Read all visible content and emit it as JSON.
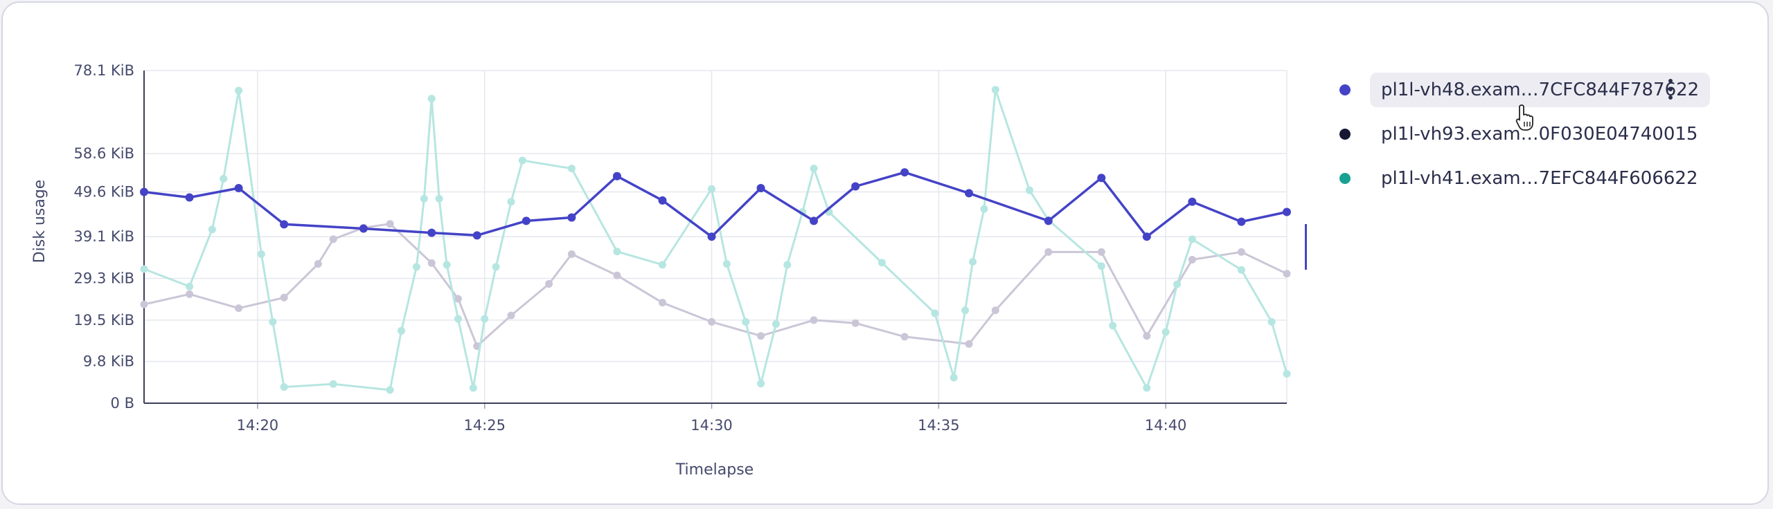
{
  "chart_data": {
    "type": "line",
    "xlabel": "Timelapse",
    "ylabel": "Disk usage",
    "x_range": [
      "14:17:30",
      "14:42:40"
    ],
    "x_ticks": [
      "14:20",
      "14:25",
      "14:30",
      "14:35",
      "14:40"
    ],
    "y_range_kib": [
      0,
      78.1
    ],
    "y_ticks": [
      {
        "value": 0,
        "label": "0 B"
      },
      {
        "value": 9.8,
        "label": "9.8 KiB"
      },
      {
        "value": 19.5,
        "label": "19.5 KiB"
      },
      {
        "value": 29.3,
        "label": "29.3 KiB"
      },
      {
        "value": 39.1,
        "label": "39.1 KiB"
      },
      {
        "value": 49.6,
        "label": "49.6 KiB"
      },
      {
        "value": 58.6,
        "label": "58.6 KiB"
      },
      {
        "value": 78.1,
        "label": "78.1 KiB"
      }
    ],
    "grid": true,
    "legend_position": "right",
    "series": [
      {
        "name": "pl1l-vh48.exam…7CFC844F787622",
        "color": "#4443c7",
        "highlighted": true,
        "points": [
          [
            "14:17:30",
            49.6
          ],
          [
            "14:18:30",
            48.3
          ],
          [
            "14:19:35",
            50.5
          ],
          [
            "14:20:35",
            42.0
          ],
          [
            "14:22:20",
            41.0
          ],
          [
            "14:23:50",
            40.0
          ],
          [
            "14:24:50",
            39.4
          ],
          [
            "14:25:55",
            42.8
          ],
          [
            "14:26:55",
            43.6
          ],
          [
            "14:27:55",
            53.3
          ],
          [
            "14:28:55",
            47.6
          ],
          [
            "14:30:00",
            39.1
          ],
          [
            "14:31:05",
            50.5
          ],
          [
            "14:32:15",
            42.8
          ],
          [
            "14:33:10",
            50.9
          ],
          [
            "14:34:15",
            54.2
          ],
          [
            "14:35:40",
            49.3
          ],
          [
            "14:37:25",
            42.8
          ],
          [
            "14:38:35",
            52.9
          ],
          [
            "14:39:35",
            39.1
          ],
          [
            "14:40:35",
            47.3
          ],
          [
            "14:41:40",
            42.6
          ],
          [
            "14:42:40",
            44.9
          ]
        ]
      },
      {
        "name": "pl1l-vh93.exam…0F030E04740015",
        "color": "#cbc6d7",
        "points": [
          [
            "14:17:30",
            23.2
          ],
          [
            "14:18:30",
            25.6
          ],
          [
            "14:19:35",
            22.3
          ],
          [
            "14:20:35",
            24.8
          ],
          [
            "14:21:20",
            32.7
          ],
          [
            "14:21:40",
            38.5
          ],
          [
            "14:22:20",
            41.2
          ],
          [
            "14:22:55",
            42.1
          ],
          [
            "14:23:50",
            32.9
          ],
          [
            "14:24:25",
            24.5
          ],
          [
            "14:24:50",
            13.4
          ],
          [
            "14:25:35",
            20.6
          ],
          [
            "14:26:25",
            28.0
          ],
          [
            "14:26:55",
            35.0
          ],
          [
            "14:27:55",
            30.0
          ],
          [
            "14:28:55",
            23.6
          ],
          [
            "14:30:00",
            19.1
          ],
          [
            "14:31:05",
            15.8
          ],
          [
            "14:32:15",
            19.5
          ],
          [
            "14:33:10",
            18.8
          ],
          [
            "14:34:15",
            15.6
          ],
          [
            "14:35:40",
            13.9
          ],
          [
            "14:36:15",
            21.8
          ],
          [
            "14:37:25",
            35.5
          ],
          [
            "14:38:35",
            35.5
          ],
          [
            "14:39:35",
            15.8
          ],
          [
            "14:40:35",
            33.7
          ],
          [
            "14:41:40",
            35.5
          ],
          [
            "14:42:40",
            30.4
          ]
        ]
      },
      {
        "name": "pl1l-vh41.exam…7EFC844F606622",
        "color": "#b6e6e1",
        "points": [
          [
            "14:17:30",
            31.5
          ],
          [
            "14:18:30",
            27.4
          ],
          [
            "14:19:00",
            40.8
          ],
          [
            "14:19:15",
            52.7
          ],
          [
            "14:19:35",
            73.4
          ],
          [
            "14:20:05",
            35.0
          ],
          [
            "14:20:20",
            19.1
          ],
          [
            "14:20:35",
            3.8
          ],
          [
            "14:21:40",
            4.5
          ],
          [
            "14:22:55",
            3.1
          ],
          [
            "14:23:10",
            17.0
          ],
          [
            "14:23:30",
            32.0
          ],
          [
            "14:23:40",
            48.0
          ],
          [
            "14:23:50",
            71.5
          ],
          [
            "14:24:00",
            48.0
          ],
          [
            "14:24:10",
            32.5
          ],
          [
            "14:24:25",
            19.8
          ],
          [
            "14:24:45",
            3.6
          ],
          [
            "14:25:00",
            19.8
          ],
          [
            "14:25:15",
            32.0
          ],
          [
            "14:25:35",
            47.3
          ],
          [
            "14:25:50",
            57.0
          ],
          [
            "14:26:55",
            55.1
          ],
          [
            "14:27:55",
            35.6
          ],
          [
            "14:28:55",
            32.5
          ],
          [
            "14:30:00",
            50.3
          ],
          [
            "14:30:20",
            32.7
          ],
          [
            "14:30:45",
            19.1
          ],
          [
            "14:31:05",
            4.6
          ],
          [
            "14:31:25",
            18.6
          ],
          [
            "14:31:40",
            32.5
          ],
          [
            "14:32:00",
            44.9
          ],
          [
            "14:32:15",
            55.1
          ],
          [
            "14:32:35",
            44.9
          ],
          [
            "14:33:45",
            33.0
          ],
          [
            "14:34:55",
            21.1
          ],
          [
            "14:35:20",
            6.0
          ],
          [
            "14:35:35",
            21.8
          ],
          [
            "14:35:45",
            33.2
          ],
          [
            "14:36:00",
            45.6
          ],
          [
            "14:36:15",
            73.6
          ],
          [
            "14:37:00",
            50.0
          ],
          [
            "14:37:25",
            43.0
          ],
          [
            "14:38:35",
            32.2
          ],
          [
            "14:38:50",
            18.2
          ],
          [
            "14:39:35",
            3.6
          ],
          [
            "14:40:00",
            16.7
          ],
          [
            "14:40:15",
            27.9
          ],
          [
            "14:40:35",
            38.5
          ],
          [
            "14:41:40",
            31.3
          ],
          [
            "14:42:20",
            19.1
          ],
          [
            "14:42:40",
            6.9
          ]
        ]
      }
    ]
  },
  "legend": {
    "dot_colors": [
      "#4443c7",
      "#161733",
      "#17a192"
    ]
  }
}
